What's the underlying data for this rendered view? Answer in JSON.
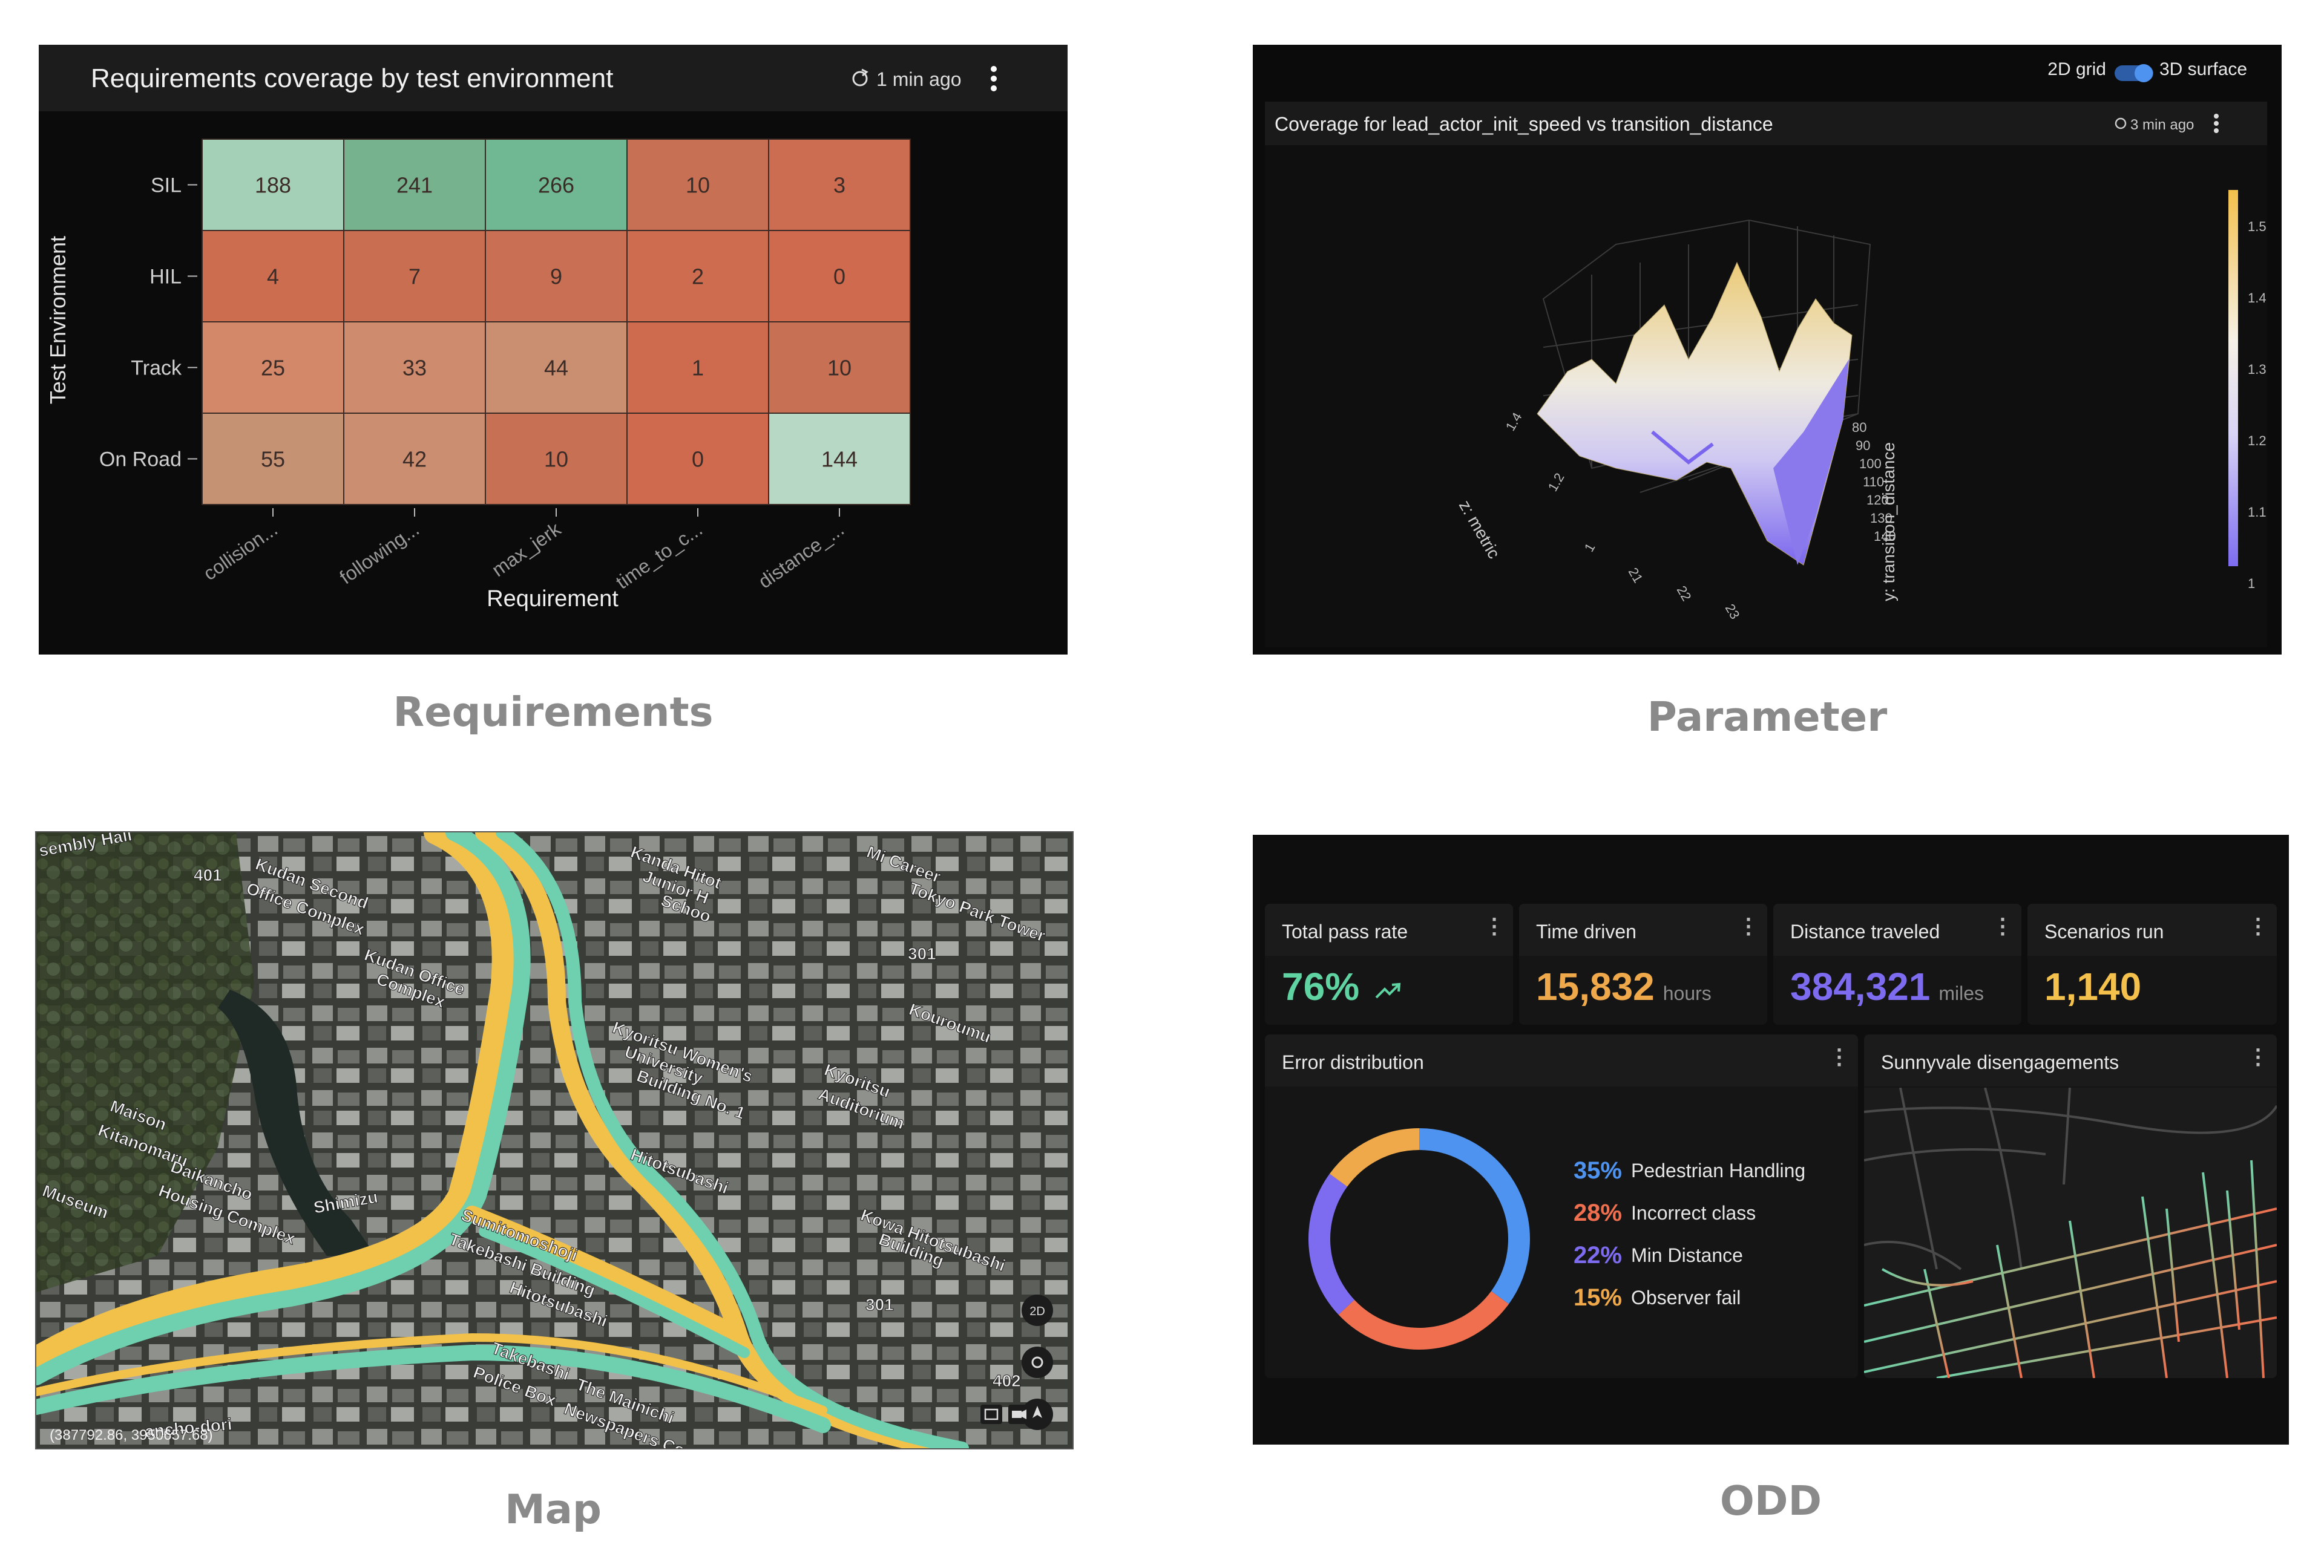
{
  "requirements_panel": {
    "title": "Requirements coverage by test environment",
    "refresh_text": "1 min ago",
    "ylabel": "Test Environment",
    "xlabel": "Requirement",
    "rows": [
      "SIL",
      "HIL",
      "Track",
      "On Road"
    ],
    "columns": [
      "collision...",
      "following...",
      "max_jerk",
      "time_to_c...",
      "distance_..."
    ],
    "cells": [
      [
        188,
        241,
        266,
        10,
        3
      ],
      [
        4,
        7,
        9,
        2,
        0
      ],
      [
        25,
        33,
        44,
        1,
        10
      ],
      [
        55,
        42,
        10,
        0,
        144
      ]
    ]
  },
  "parameter_panel": {
    "toggle_left": "2D grid",
    "toggle_right": "3D surface",
    "title": "Coverage for lead_actor_init_speed vs transition_distance",
    "refresh_text": "3 min ago",
    "z_axis_label": "z: metric",
    "y_axis_label": "y: transition_distance",
    "z_ticks": [
      "1.4",
      "1.2",
      "1"
    ],
    "x_ticks": [
      "21",
      "22",
      "23"
    ],
    "y_ticks": [
      "80",
      "90",
      "100",
      "110",
      "120",
      "130",
      "140"
    ],
    "colorbar_ticks": [
      "1.5",
      "1.4",
      "1.3",
      "1.2",
      "1.1",
      "1"
    ]
  },
  "map_panel": {
    "labels": [
      "sembly Hall",
      "Kudan Second",
      "Office Complex",
      "Kudan Office",
      "Complex",
      "Maison",
      "Kitanomaru",
      "Daikancho",
      "Housing Complex",
      "Museum",
      "Shimizu",
      "Sumitomoshoji",
      "Takebashi Building",
      "Hitotsubashi",
      "Takebashi",
      "Police Box",
      "The Mainichi",
      "Newspapers Co., Ltd.",
      "Kanda Hitot",
      "Junior H",
      "Schoo",
      "Kyoritsu Women's",
      "University",
      "Building No. 1",
      "Kyoritsu",
      "Auditorium",
      "Hitotsubashi",
      "Kowa Hitotsubashi",
      "Building",
      "Mi Career",
      "Tokyo Park Tower",
      "Kouroumu",
      "ancho-dori",
      "401",
      "301",
      "301",
      "402",
      "2D"
    ],
    "coords_text": "(387792.86, 3950657.68)"
  },
  "odd_panel": {
    "kpis": [
      {
        "label": "Total pass rate",
        "value": "76%",
        "unit": "",
        "color": "#5fd3a2"
      },
      {
        "label": "Time driven",
        "value": "15,832",
        "unit": "hours",
        "color": "#f0a94a"
      },
      {
        "label": "Distance traveled",
        "value": "384,321",
        "unit": "miles",
        "color": "#7d6cf0"
      },
      {
        "label": "Scenarios run",
        "value": "1,140",
        "unit": "",
        "color": "#f4c14c"
      }
    ],
    "error_title": "Error distribution",
    "errors": [
      {
        "pct": "35%",
        "label": "Pedestrian Handling",
        "value": 35,
        "color": "#4f93f0"
      },
      {
        "pct": "28%",
        "label": "Incorrect class",
        "value": 28,
        "color": "#ef6f4f"
      },
      {
        "pct": "22%",
        "label": "Min Distance",
        "value": 22,
        "color": "#7d6cf0"
      },
      {
        "pct": "15%",
        "label": "Observer fail",
        "value": 15,
        "color": "#f0a94a"
      }
    ],
    "map_title": "Sunnyvale disengagements"
  },
  "captions": {
    "requirements": "Requirements",
    "parameter": "Parameter",
    "map": "Map",
    "odd": "ODD"
  },
  "colors": {
    "heat_low": "#cf6a4e",
    "heat_high": "#6fb893",
    "panel_bg": "#0c0c0c"
  }
}
